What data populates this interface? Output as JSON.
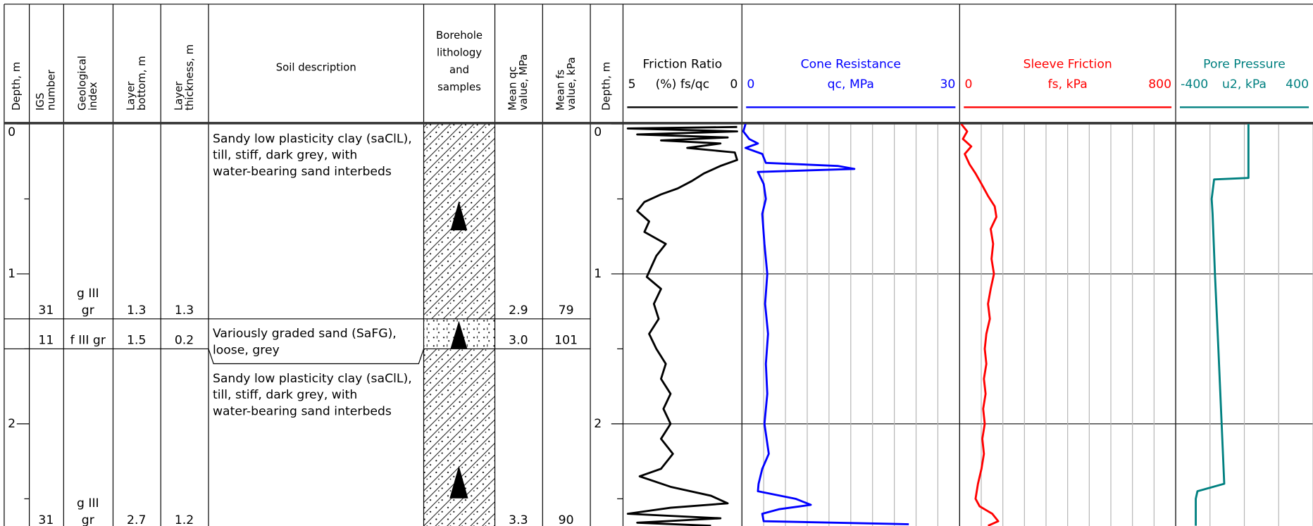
{
  "columns": [
    {
      "lines": [
        "Depth, m"
      ]
    },
    {
      "lines": [
        "IGS",
        "number"
      ]
    },
    {
      "lines": [
        "Geological",
        "index"
      ]
    },
    {
      "lines": [
        "Layer",
        "bottom, m"
      ]
    },
    {
      "lines": [
        "Layer",
        "thickness, m"
      ]
    },
    {
      "lines": [
        "Soil description"
      ]
    },
    {
      "lines": [
        "Borehole",
        "lithology",
        "and",
        "samples"
      ]
    },
    {
      "lines": [
        "Mean qc",
        "value, MPa"
      ]
    },
    {
      "lines": [
        "Mean fs",
        "value, kPa"
      ]
    },
    {
      "lines": [
        "Depth, m"
      ]
    }
  ],
  "depth": {
    "lim": [
      0,
      2.68
    ],
    "ticks": [
      0,
      1,
      2
    ],
    "minor": [
      0.5,
      1.5,
      2.5
    ]
  },
  "layers": [
    {
      "igs": "31",
      "index": [
        "g III",
        "gr"
      ],
      "bottom": 1.3,
      "thickness": 1.3,
      "description": [
        "Sandy low plasticity clay (saClL),",
        "till, stiff, dark grey, with",
        "water-bearing sand interbeds"
      ],
      "mean_qc": "2.9",
      "mean_fs": 79
    },
    {
      "igs": "11",
      "index": [
        "f III gr"
      ],
      "bottom": 1.5,
      "thickness": 0.2,
      "description": [
        "Variously graded sand (SaFG),",
        "loose, grey"
      ],
      "mean_qc": "3.0",
      "mean_fs": 101
    },
    {
      "igs": "31",
      "index": [
        "g III",
        "gr"
      ],
      "bottom": 2.7,
      "thickness": 1.2,
      "description": [
        "Sandy low plasticity clay (saClL),",
        "till, stiff, dark grey, with",
        "water-bearing sand interbeds"
      ],
      "mean_qc": "3.3",
      "mean_fs": 90
    }
  ],
  "logs": [
    {
      "title": "Friction Ratio",
      "axis_label": "(%) fs/qc",
      "xlim": [
        5,
        0
      ],
      "color": "#000000",
      "depth": [
        0.02,
        0.03,
        0.05,
        0.07,
        0.09,
        0.11,
        0.13,
        0.16,
        0.19,
        0.24,
        0.28,
        0.33,
        0.38,
        0.43,
        0.47,
        0.52,
        0.58,
        0.65,
        0.72,
        0.8,
        0.88,
        0.95,
        1.02,
        1.1,
        1.2,
        1.3,
        1.4,
        1.5,
        1.6,
        1.7,
        1.8,
        1.9,
        2.0,
        2.1,
        2.2,
        2.3,
        2.35,
        2.42,
        2.48,
        2.53,
        2.56,
        2.6,
        2.63,
        2.66,
        2.68
      ],
      "values": [
        0.2,
        4.8,
        0.2,
        4.4,
        0.6,
        3.4,
        0.9,
        2.3,
        0.3,
        0.2,
        0.9,
        1.6,
        2.1,
        2.7,
        3.4,
        4.1,
        4.4,
        3.9,
        4.1,
        3.2,
        3.6,
        3.8,
        4.0,
        3.4,
        3.7,
        3.5,
        3.9,
        3.6,
        3.2,
        3.4,
        3.0,
        3.3,
        3.0,
        3.4,
        2.9,
        3.4,
        4.3,
        3.0,
        1.3,
        0.6,
        3.0,
        4.8,
        0.9,
        4.4,
        1.3
      ]
    },
    {
      "title": "Cone Resistance",
      "axis_label": "qc, MPa",
      "xlim": [
        0,
        30
      ],
      "xticks": [
        0,
        3,
        6,
        9,
        12,
        15,
        18,
        21,
        24,
        27,
        30
      ],
      "color": "#0000ff",
      "depth": [
        0,
        0.05,
        0.1,
        0.13,
        0.16,
        0.2,
        0.26,
        0.28,
        0.3,
        0.32,
        0.4,
        0.5,
        0.6,
        0.8,
        1.0,
        1.2,
        1.4,
        1.6,
        1.8,
        2.0,
        2.2,
        2.3,
        2.4,
        2.45,
        2.5,
        2.54,
        2.57,
        2.6,
        2.65,
        2.67
      ],
      "values": [
        0.5,
        0.2,
        1.0,
        2.2,
        0.5,
        2.8,
        3.3,
        13.2,
        15.5,
        2.2,
        3.0,
        3.3,
        2.8,
        3.1,
        3.5,
        3.2,
        3.6,
        3.3,
        3.5,
        3.1,
        3.7,
        2.8,
        2.3,
        2.2,
        7.4,
        9.5,
        5.1,
        2.8,
        3.0,
        23.0
      ]
    },
    {
      "title": "Sleeve Friction",
      "axis_label": "fs, kPa",
      "xlim": [
        0,
        800
      ],
      "xticks": [
        0,
        80,
        160,
        240,
        320,
        400,
        480,
        560,
        640,
        720,
        800
      ],
      "color": "#ff0000",
      "depth": [
        0,
        0.05,
        0.1,
        0.15,
        0.2,
        0.27,
        0.33,
        0.4,
        0.48,
        0.55,
        0.62,
        0.7,
        0.8,
        0.9,
        1.0,
        1.1,
        1.2,
        1.3,
        1.4,
        1.5,
        1.6,
        1.7,
        1.8,
        1.9,
        2.0,
        2.1,
        2.2,
        2.3,
        2.4,
        2.5,
        2.55,
        2.6,
        2.65,
        2.68
      ],
      "values": [
        6,
        28,
        12,
        43,
        19,
        37,
        59,
        81,
        105,
        130,
        136,
        115,
        124,
        118,
        127,
        115,
        105,
        112,
        99,
        93,
        99,
        90,
        96,
        87,
        93,
        84,
        90,
        81,
        68,
        59,
        74,
        121,
        143,
        105
      ]
    },
    {
      "title": "Pore Pressure",
      "axis_label": "u2, kPa",
      "xlim": [
        -400,
        400
      ],
      "xticks": [
        -400,
        -200,
        0,
        200,
        400
      ],
      "color": "#008080",
      "depth": [
        0,
        0.36,
        0.37,
        0.5,
        0.6,
        1.0,
        1.5,
        2.0,
        2.4,
        2.45,
        2.5,
        2.68
      ],
      "values": [
        24,
        24,
        -176,
        -190,
        -185,
        -171,
        -151,
        -132,
        -117,
        -273,
        -283,
        -283
      ]
    }
  ]
}
